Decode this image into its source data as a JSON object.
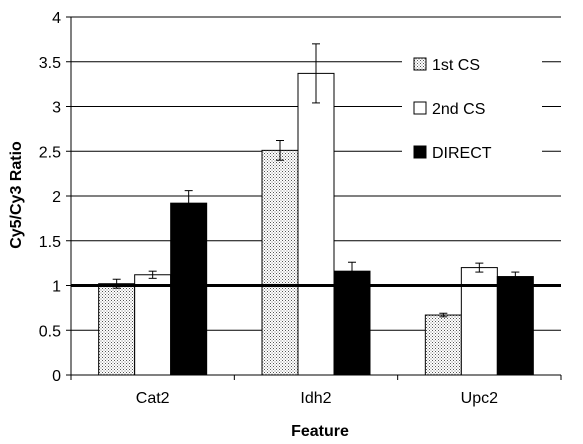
{
  "chart_data": {
    "type": "bar",
    "xlabel": "Feature",
    "ylabel": "Cy5/Cy3 Ratio",
    "categories": [
      "Cat2",
      "Idh2",
      "Upc2"
    ],
    "ylim": [
      0,
      4
    ],
    "yticks": [
      "0",
      "0.5",
      "1",
      "1.5",
      "2",
      "2.5",
      "3",
      "3.5",
      "4"
    ],
    "grid": true,
    "reference_line": 1,
    "legend_position": "right",
    "series": [
      {
        "name": "1st CS",
        "values": [
          1.02,
          2.51,
          0.67
        ],
        "errors": [
          0.05,
          0.11,
          0.02
        ],
        "fill": "dotted",
        "color": "#d8d8d8"
      },
      {
        "name": "2nd CS",
        "values": [
          1.12,
          3.37,
          1.2
        ],
        "errors": [
          0.04,
          0.33,
          0.05
        ],
        "fill": "solid",
        "color": "#ffffff"
      },
      {
        "name": "DIRECT",
        "values": [
          1.92,
          1.16,
          1.1
        ],
        "errors": [
          0.14,
          0.1,
          0.05
        ],
        "fill": "solid",
        "color": "#000000"
      }
    ]
  }
}
